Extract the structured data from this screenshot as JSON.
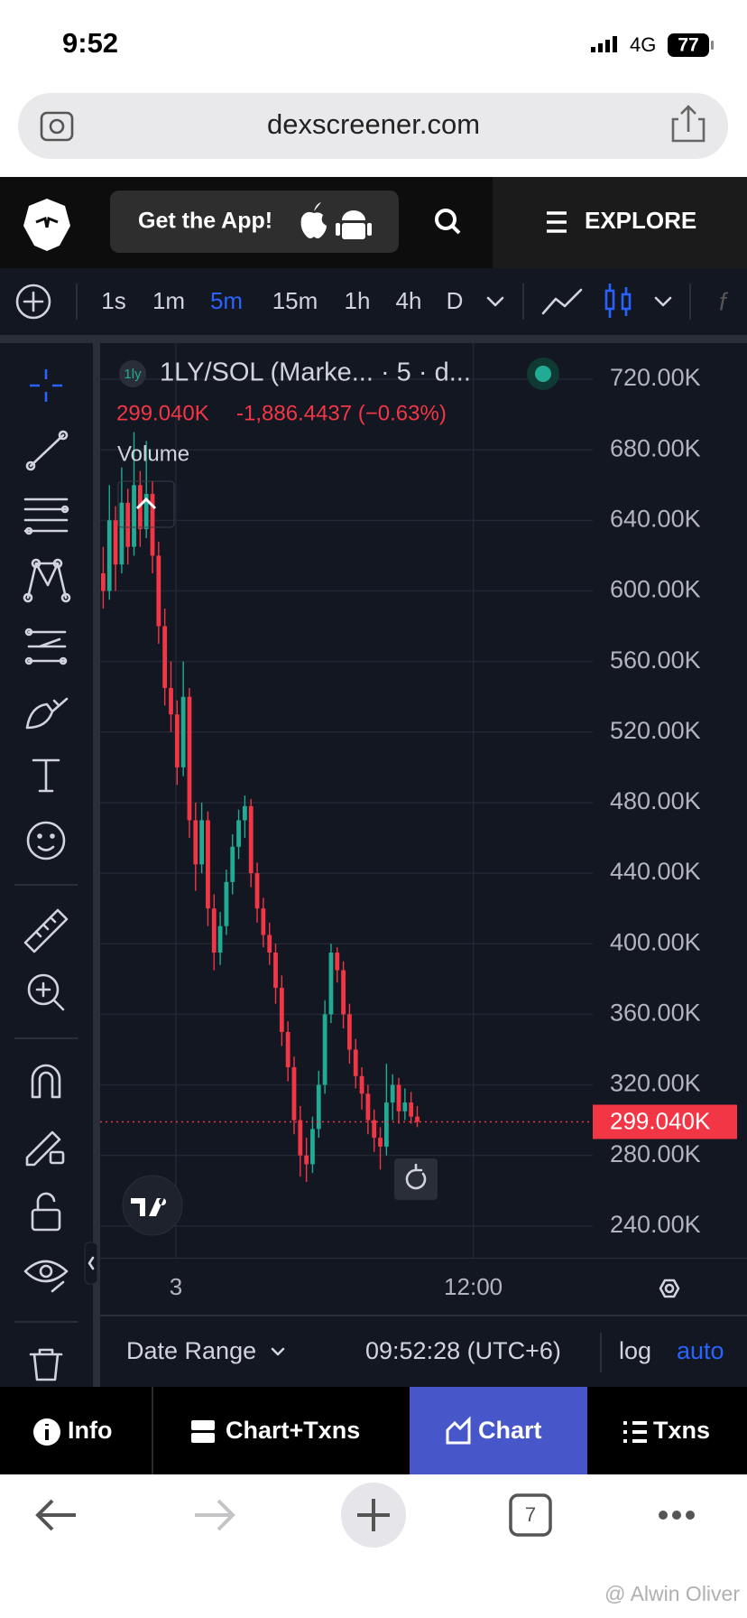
{
  "status_bar": {
    "time": "9:52",
    "network": "4G",
    "battery": "77"
  },
  "browser": {
    "url": "dexscreener.com",
    "tab_count": "7"
  },
  "nav": {
    "get_app": "Get the App!",
    "explore": "EXPLORE"
  },
  "toolbar": {
    "intervals": [
      "1s",
      "1m",
      "5m",
      "15m",
      "1h",
      "4h",
      "D"
    ],
    "active_interval": 2
  },
  "chart_data": {
    "type": "candlestick",
    "symbol_icon": "1ly",
    "symbol": "1LY/SOL (Marke... · 5 · d...",
    "change": "-1,886.4437 (−0.63%)",
    "volume_label": "Volume",
    "last_price": {
      "value": 299040,
      "label": "299.040K"
    },
    "up_color": "#22ab94",
    "down_color": "#f23645",
    "open": [
      610000,
      600000,
      640000,
      615000,
      650000,
      625000,
      660000,
      635000,
      655000,
      620000,
      580000,
      545000,
      530000,
      500000,
      540000,
      470000,
      445000,
      470000,
      420000,
      395000,
      410000,
      435000,
      455000,
      470000,
      478000,
      440000,
      420000,
      405000,
      395000,
      375000,
      350000,
      330000,
      300000,
      280000,
      275000,
      295000,
      320000,
      360000,
      395000,
      385000,
      360000,
      340000,
      325000,
      315000,
      300000,
      290000,
      285000,
      310000,
      320000,
      305000,
      310000,
      302000
    ],
    "high": [
      625000,
      660000,
      648000,
      670000,
      658000,
      690000,
      668000,
      685000,
      662000,
      628000,
      590000,
      560000,
      538000,
      560000,
      545000,
      480000,
      480000,
      475000,
      428000,
      418000,
      442000,
      462000,
      476000,
      484000,
      482000,
      446000,
      426000,
      412000,
      400000,
      382000,
      356000,
      336000,
      308000,
      290000,
      302000,
      328000,
      368000,
      400000,
      398000,
      390000,
      366000,
      346000,
      330000,
      320000,
      306000,
      296000,
      332000,
      326000,
      324000,
      318000,
      316000,
      308000
    ],
    "low": [
      590000,
      595000,
      600000,
      610000,
      615000,
      620000,
      625000,
      630000,
      610000,
      570000,
      535000,
      520000,
      490000,
      495000,
      460000,
      430000,
      440000,
      410000,
      385000,
      388000,
      405000,
      428000,
      448000,
      460000,
      432000,
      412000,
      398000,
      388000,
      366000,
      342000,
      322000,
      292000,
      268000,
      265000,
      270000,
      290000,
      315000,
      355000,
      378000,
      352000,
      332000,
      318000,
      306000,
      292000,
      282000,
      272000,
      280000,
      300000,
      298000,
      300000,
      298000,
      296000
    ],
    "close": [
      600000,
      640000,
      615000,
      650000,
      625000,
      660000,
      635000,
      655000,
      620000,
      580000,
      545000,
      530000,
      500000,
      540000,
      470000,
      445000,
      470000,
      420000,
      395000,
      410000,
      435000,
      455000,
      470000,
      478000,
      440000,
      420000,
      405000,
      395000,
      375000,
      350000,
      330000,
      300000,
      280000,
      275000,
      295000,
      320000,
      360000,
      395000,
      385000,
      360000,
      340000,
      325000,
      315000,
      300000,
      290000,
      285000,
      310000,
      320000,
      305000,
      310000,
      302000,
      299040
    ],
    "ylim": [
      222000,
      740500
    ],
    "yticks": [
      {
        "value": 240000,
        "label": "240.00K"
      },
      {
        "value": 280000,
        "label": "280.00K"
      },
      {
        "value": 320000,
        "label": "320.00K"
      },
      {
        "value": 360000,
        "label": "360.00K"
      },
      {
        "value": 400000,
        "label": "400.00K"
      },
      {
        "value": 440000,
        "label": "440.00K"
      },
      {
        "value": 480000,
        "label": "480.00K"
      },
      {
        "value": 520000,
        "label": "520.00K"
      },
      {
        "value": 560000,
        "label": "560.00K"
      },
      {
        "value": 600000,
        "label": "600.00K"
      },
      {
        "value": 640000,
        "label": "640.00K"
      },
      {
        "value": 680000,
        "label": "680.00K"
      },
      {
        "value": 720000,
        "label": "720.00K"
      }
    ],
    "xlim": [
      0,
      80
    ],
    "xticks": [
      {
        "value": 12.3,
        "label": "3"
      },
      {
        "value": 60.6,
        "label": "12:00"
      }
    ],
    "grid": true
  },
  "footer": {
    "date_range": "Date Range",
    "time": "09:52:28 (UTC+6)",
    "log": "log",
    "auto": "auto"
  },
  "tabs": [
    "Info",
    "Chart+Txns",
    "Chart",
    "Txns"
  ],
  "active_tab": 2,
  "watermark": "@ Alwin Oliver"
}
